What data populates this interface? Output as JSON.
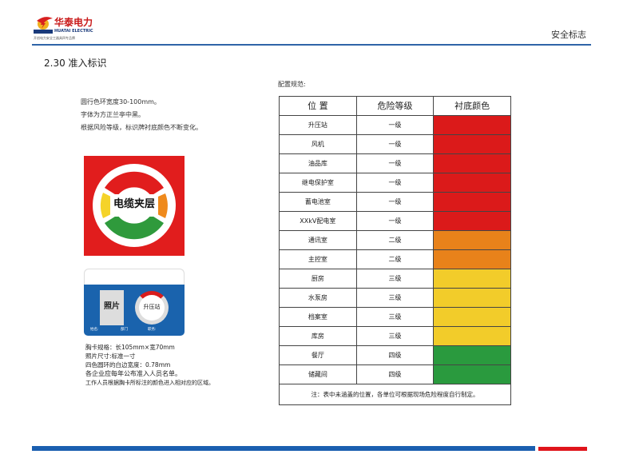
{
  "header": {
    "logo_cn": "华泰电力",
    "logo_en": "HUATAI ELECTRIC",
    "logo_badge": "HUATAI",
    "logo_tagline": "开创电力安全工器具四专品牌",
    "section": "安全标志"
  },
  "page_title": "2.30  准入标识",
  "description": [
    "圆行色环宽度30-100mm。",
    "字体为方正兰亭中黑。",
    "根据风险等级，标识牌衬底颜色不断变化。"
  ],
  "sign": {
    "label": "电缆夹层",
    "ring_colors": [
      "#e11d1d",
      "#ef8a1c",
      "#2f9a3c",
      "#f5d32a"
    ]
  },
  "badge_card": {
    "photo": "照片",
    "location": "升压站",
    "fields": [
      "姓名:",
      "部门",
      "职务:"
    ],
    "color": "#1a63ad"
  },
  "card_specs": [
    "胸卡规格：长105mm×宽70mm",
    "照片尺寸:标准一寸",
    "四色圆环的白边宽度：0.78mm",
    "各企业应每年公布准入人员名单。",
    "工作人员根据胸卡所标注的颜色进入相对应的区域。"
  ],
  "config": {
    "label": "配置规范:",
    "headers": [
      "位 置",
      "危险等级",
      "衬底颜色"
    ],
    "rows": [
      {
        "location": "升压站",
        "level": "一级",
        "color": "#db1a1a"
      },
      {
        "location": "风机",
        "level": "一级",
        "color": "#db1a1a"
      },
      {
        "location": "油品库",
        "level": "一级",
        "color": "#db1a1a"
      },
      {
        "location": "继电保护室",
        "level": "一级",
        "color": "#db1a1a"
      },
      {
        "location": "蓄电池室",
        "level": "一级",
        "color": "#db1a1a"
      },
      {
        "location": "XXkV配电室",
        "level": "一级",
        "color": "#db1a1a"
      },
      {
        "location": "通讯室",
        "level": "二级",
        "color": "#e8821a"
      },
      {
        "location": "主控室",
        "level": "二级",
        "color": "#e8821a"
      },
      {
        "location": "厨房",
        "level": "三级",
        "color": "#f2cc2a"
      },
      {
        "location": "水泵房",
        "level": "三级",
        "color": "#f2cc2a"
      },
      {
        "location": "档案室",
        "level": "三级",
        "color": "#f2cc2a"
      },
      {
        "location": "库房",
        "level": "三级",
        "color": "#f2cc2a"
      },
      {
        "location": "餐厅",
        "level": "四级",
        "color": "#2a9a3e"
      },
      {
        "location": "储藏间",
        "level": "四级",
        "color": "#2a9a3e"
      }
    ],
    "note": "注：表中未涵盖的位置，各单位可根据现场危险程度自行制定。"
  }
}
